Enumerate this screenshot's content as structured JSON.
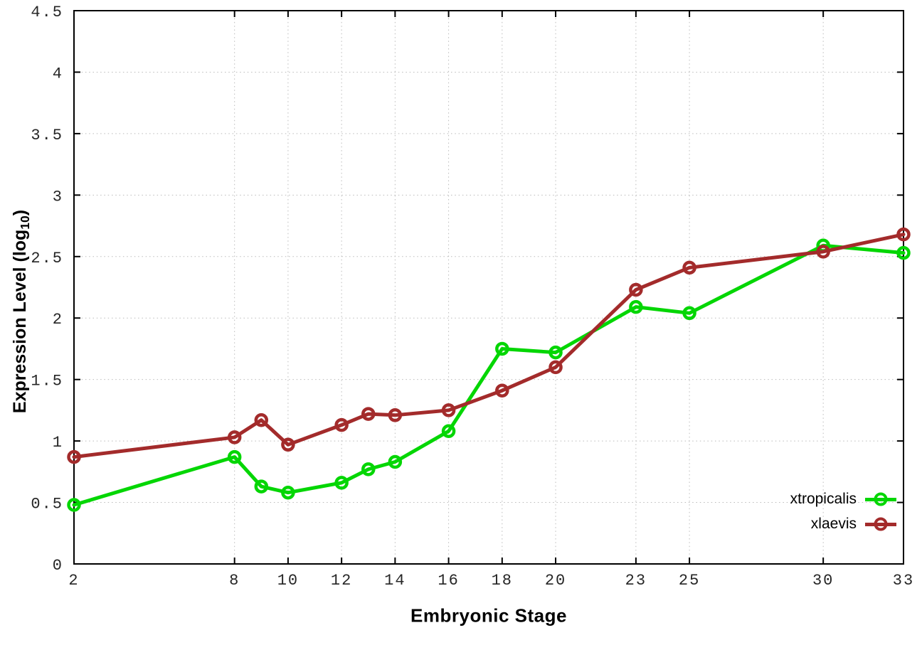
{
  "chart_data": {
    "type": "line",
    "title": "",
    "xlabel": "Embryonic Stage",
    "ylabel": "Expression Level (log10)",
    "ylabel_parts": {
      "prefix": "Expression Level (log",
      "sub": "10",
      "suffix": ")"
    },
    "x": [
      2,
      8,
      9,
      10,
      12,
      13,
      14,
      16,
      18,
      20,
      23,
      25,
      30,
      33
    ],
    "series": [
      {
        "name": "xtropicalis",
        "color": "#04d604",
        "marker": "open-circle",
        "values": [
          0.48,
          0.87,
          0.63,
          0.58,
          0.66,
          0.77,
          0.83,
          1.08,
          1.75,
          1.72,
          2.09,
          2.04,
          2.59,
          2.53
        ]
      },
      {
        "name": "xlaevis",
        "color": "#a32b2b",
        "marker": "open-circle",
        "values": [
          0.87,
          1.03,
          1.17,
          0.97,
          1.13,
          1.22,
          1.21,
          1.25,
          1.41,
          1.6,
          2.23,
          2.41,
          2.54,
          2.68
        ]
      }
    ],
    "xlim": [
      2,
      33
    ],
    "ylim": [
      0,
      4.5
    ],
    "xticks": [
      2,
      8,
      10,
      12,
      14,
      16,
      18,
      20,
      23,
      25,
      30,
      33
    ],
    "yticks": [
      0,
      0.5,
      1,
      1.5,
      2,
      2.5,
      3,
      3.5,
      4,
      4.5
    ],
    "ytick_labels": [
      "0",
      "0.5",
      "1",
      "1.5",
      "2",
      "2.5",
      "3",
      "3.5",
      "4",
      "4.5"
    ],
    "grid": true,
    "grid_style": "dotted",
    "legend_position": "bottom-right",
    "colors": {
      "background": "#ffffff",
      "border": "#000000",
      "grid": "#bbbbbb",
      "tick_text": "#262626"
    }
  }
}
